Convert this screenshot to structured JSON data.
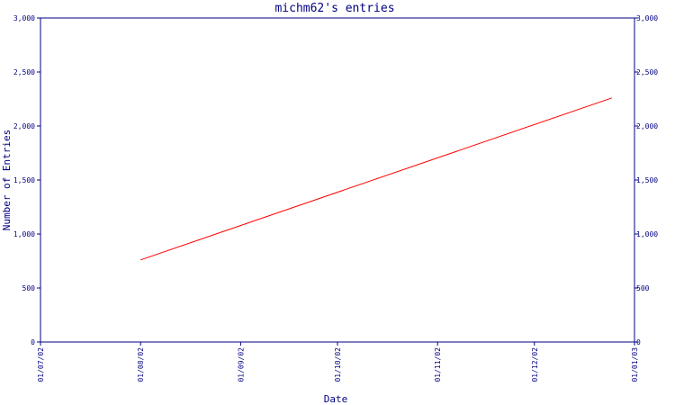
{
  "colors": {
    "axis": "#000080",
    "series": "#ff0000",
    "background": "#ffffff"
  },
  "chart_data": {
    "type": "line",
    "title": "michm62's entries",
    "xlabel": "Date",
    "ylabel": "Number of Entries",
    "ylim": [
      0,
      3000
    ],
    "xlim": [
      "2002-07-01",
      "2003-01-01"
    ],
    "grid": false,
    "legend": "none",
    "y_ticks": [
      0,
      500,
      1000,
      1500,
      2000,
      2500,
      3000
    ],
    "y_tick_labels": [
      "0",
      "500",
      "1,000",
      "1,500",
      "2,000",
      "2,500",
      "3,000"
    ],
    "x_ticks": [
      "2002-07-01",
      "2002-08-01",
      "2002-09-01",
      "2002-10-01",
      "2002-11-01",
      "2002-12-01",
      "2003-01-01"
    ],
    "x_tick_labels": [
      "01/07/02",
      "01/08/02",
      "01/09/02",
      "01/10/02",
      "01/11/02",
      "01/12/02",
      "01/01/03"
    ],
    "series": [
      {
        "x": [
          "2002-08-01",
          "2002-12-25"
        ],
        "y": [
          760,
          2260
        ]
      }
    ]
  }
}
